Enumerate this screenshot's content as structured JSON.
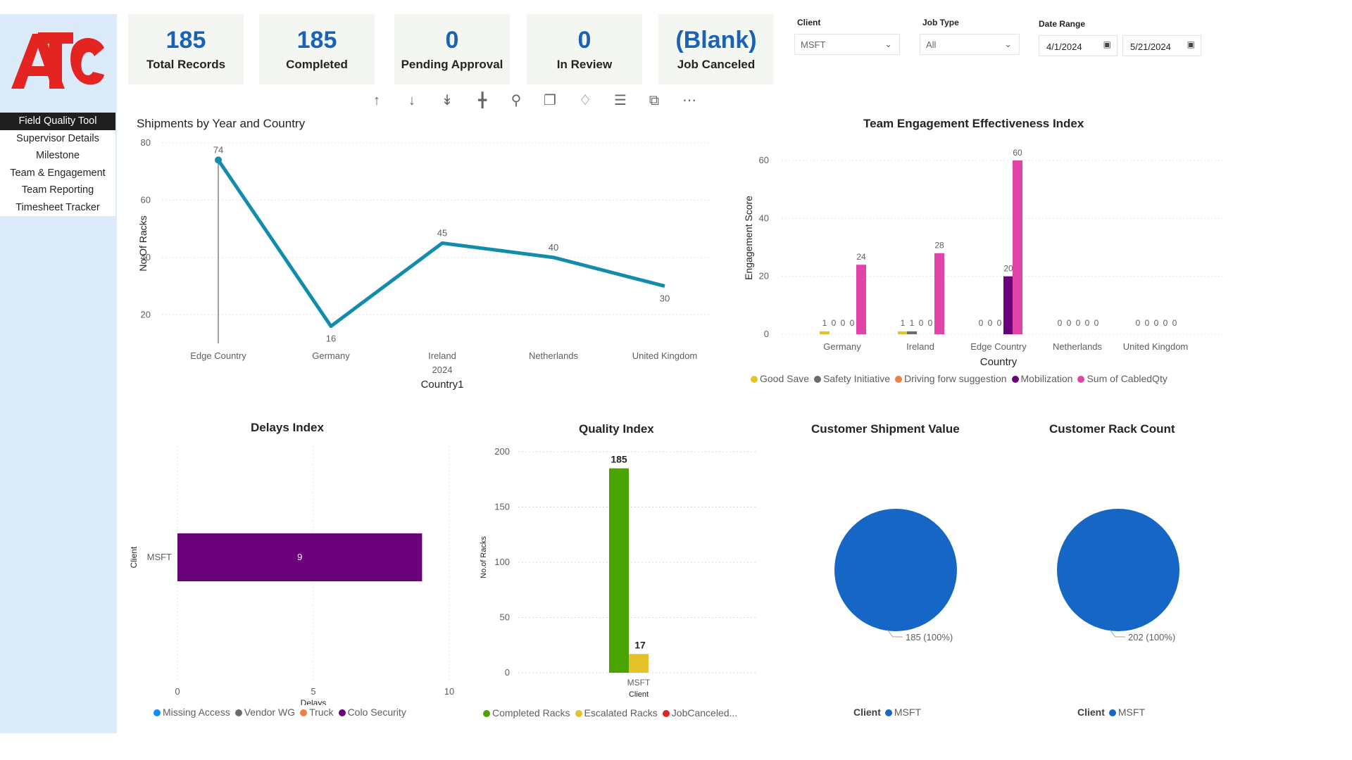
{
  "brand": {
    "logo_text": "ATC",
    "logo_color": "#e32421"
  },
  "nav": {
    "items": [
      {
        "label": "Field Quality Tool",
        "active": true
      },
      {
        "label": "Supervisor Details"
      },
      {
        "label": "Milestone"
      },
      {
        "label": "Team & Engagement"
      },
      {
        "label": "Team Reporting"
      },
      {
        "label": "Timesheet Tracker"
      }
    ]
  },
  "kpis": [
    {
      "value": "185",
      "label": "Total Records"
    },
    {
      "value": "185",
      "label": "Completed"
    },
    {
      "value": "0",
      "label": "Pending Approval"
    },
    {
      "value": "0",
      "label": "In Review"
    },
    {
      "value": "(Blank)",
      "label": "Job Canceled"
    }
  ],
  "filters": {
    "client": {
      "label": "Client",
      "value": "MSFT"
    },
    "job_type": {
      "label": "Job Type",
      "value": "All"
    },
    "date_range": {
      "label": "Date Range",
      "start": "4/1/2024",
      "end": "5/21/2024"
    }
  },
  "toolbar": [
    "arrow-up-icon",
    "arrow-down-icon",
    "drill-down-all-icon",
    "expand-hierarchy-icon",
    "pin-icon",
    "copy-icon",
    "bell-icon",
    "filter-icon",
    "focus-mode-icon",
    "more-options-icon"
  ],
  "chart_data": [
    {
      "id": "shipments",
      "type": "line",
      "title": "Shipments by Year and Country",
      "xlabel": "Country1",
      "ylabel": "No.Of Racks",
      "categories": [
        "Edge Country",
        "Germany",
        "Ireland",
        "Netherlands",
        "United Kingdom"
      ],
      "category_sublabel": {
        "index": 2,
        "text": "2024"
      },
      "values": [
        74,
        16,
        45,
        40,
        30
      ],
      "yticks": [
        20,
        40,
        60,
        80
      ],
      "ylim": [
        10,
        80
      ],
      "color": "#118dab",
      "grid": true
    },
    {
      "id": "engagement",
      "type": "bar",
      "title": "Team Engagement Effectiveness Index",
      "xlabel": "Country",
      "ylabel": "Engagement Score",
      "categories": [
        "Germany",
        "Ireland",
        "Edge Country",
        "Netherlands",
        "United Kingdom"
      ],
      "series": [
        {
          "name": "Good Save",
          "color": "#e6c229",
          "values": [
            1,
            1,
            0,
            0,
            0
          ]
        },
        {
          "name": "Safety Initiative",
          "color": "#6b6b6b",
          "values": [
            0,
            1,
            0,
            0,
            0
          ]
        },
        {
          "name": "Driving forw suggestion",
          "color": "#f07f45",
          "values": [
            0,
            0,
            0,
            0,
            0
          ]
        },
        {
          "name": "Mobilization",
          "color": "#6b007b",
          "values": [
            0,
            0,
            20,
            0,
            0
          ]
        },
        {
          "name": "Sum of CabledQty",
          "color": "#e044a7",
          "values": [
            24,
            28,
            60,
            0,
            0
          ]
        }
      ],
      "yticks": [
        0,
        20,
        40,
        60
      ],
      "ylim": [
        0,
        60
      ],
      "legend": "bottom",
      "grid": true
    },
    {
      "id": "delays",
      "type": "bar",
      "orientation": "horizontal",
      "title": "Delays Index",
      "xlabel": "Delays",
      "ylabel": "Client",
      "categories": [
        "MSFT"
      ],
      "series": [
        {
          "name": "Missing Access",
          "color": "#118dff",
          "values": [
            0
          ]
        },
        {
          "name": "Vendor WG",
          "color": "#6b6b6b",
          "values": [
            0
          ]
        },
        {
          "name": "Truck",
          "color": "#f07f45",
          "values": [
            0
          ]
        },
        {
          "name": "Colo Security",
          "color": "#6b007b",
          "values": [
            9
          ]
        }
      ],
      "xticks": [
        0,
        5,
        10
      ],
      "xlim": [
        0,
        10
      ],
      "legend": "bottom"
    },
    {
      "id": "quality",
      "type": "bar",
      "title": "Quality Index",
      "xlabel": "Client",
      "ylabel": "No.of Racks",
      "categories": [
        "MSFT"
      ],
      "series": [
        {
          "name": "Completed Racks",
          "color": "#4aa300",
          "values": [
            185
          ]
        },
        {
          "name": "Escalated Racks",
          "color": "#e6c229",
          "values": [
            17
          ]
        },
        {
          "name": "JobCanceled...",
          "color": "#e32421",
          "values": [
            0
          ]
        }
      ],
      "yticks": [
        0,
        50,
        100,
        150,
        200
      ],
      "ylim": [
        0,
        200
      ],
      "legend": "bottom",
      "grid": true
    },
    {
      "id": "shipment_value",
      "type": "pie",
      "title": "Customer Shipment Value",
      "slices": [
        {
          "label": "MSFT",
          "value": 185,
          "percent": "100%",
          "color": "#1667c5"
        }
      ],
      "data_label": "185 (100%)",
      "legend_title": "Client"
    },
    {
      "id": "rack_count",
      "type": "pie",
      "title": "Customer Rack Count",
      "slices": [
        {
          "label": "MSFT",
          "value": 202,
          "percent": "100%",
          "color": "#1667c5"
        }
      ],
      "data_label": "202 (100%)",
      "legend_title": "Client"
    }
  ]
}
